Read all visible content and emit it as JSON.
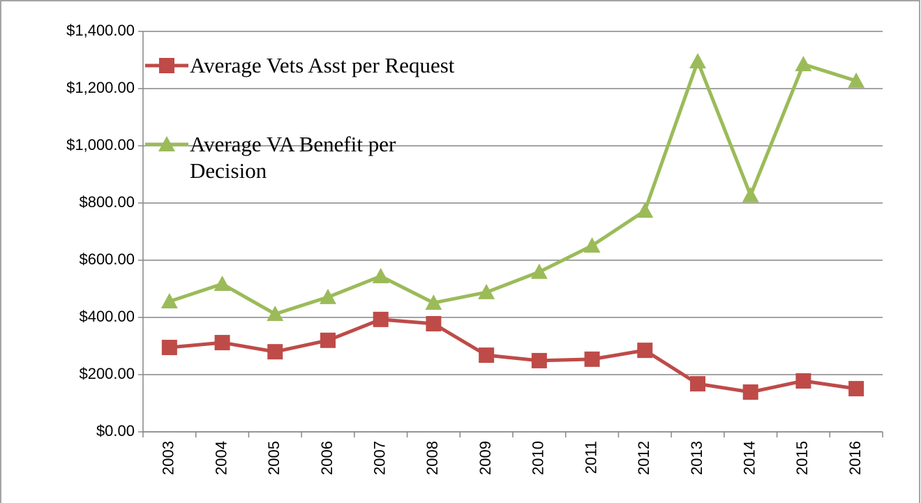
{
  "chart_data": {
    "type": "line",
    "categories": [
      "2003",
      "2004",
      "2005",
      "2006",
      "2007",
      "2008",
      "2009",
      "2010",
      "2011",
      "2012",
      "2013",
      "2014",
      "2015",
      "2016"
    ],
    "series": [
      {
        "name": "Average Vets Asst per Request",
        "color": "#be4b48",
        "marker": "square",
        "values": [
          295,
          312,
          280,
          320,
          393,
          378,
          268,
          249,
          254,
          285,
          168,
          139,
          178,
          151
        ]
      },
      {
        "name": "Average VA Benefit per Decision",
        "color": "#9bbb59",
        "marker": "triangle",
        "values": [
          456,
          517,
          412,
          471,
          544,
          451,
          488,
          559,
          651,
          773,
          1295,
          827,
          1285,
          1227
        ]
      }
    ],
    "ylim": [
      0,
      1400
    ],
    "yticks": [
      {
        "value": 0,
        "label": "$0.00"
      },
      {
        "value": 200,
        "label": "$200.00"
      },
      {
        "value": 400,
        "label": "$400.00"
      },
      {
        "value": 600,
        "label": "$600.00"
      },
      {
        "value": 800,
        "label": "$800.00"
      },
      {
        "value": 1000,
        "label": "$1,000.00"
      },
      {
        "value": 1200,
        "label": "$1,200.00"
      },
      {
        "value": 1400,
        "label": "$1,400.00"
      }
    ],
    "grid": true,
    "legend": "upper left"
  }
}
